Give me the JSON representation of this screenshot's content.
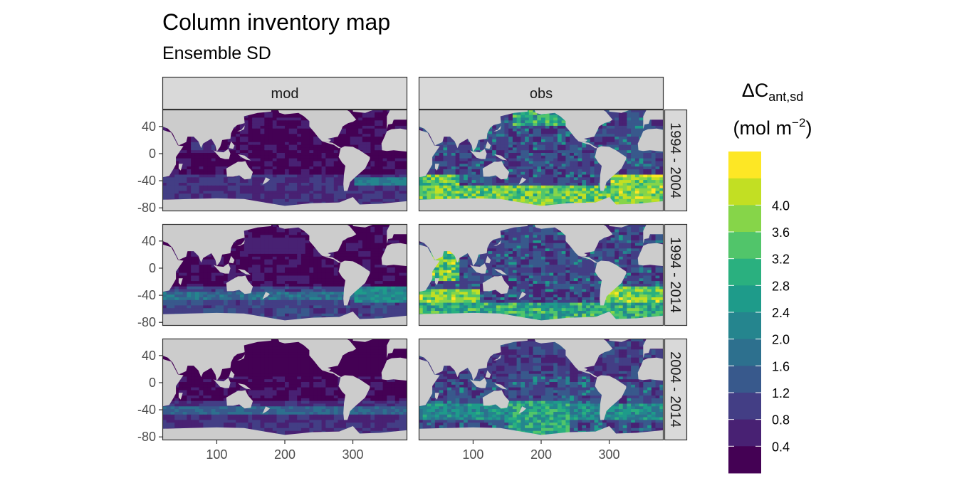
{
  "chart_data": {
    "type": "heatmap",
    "title": "Column inventory map",
    "subtitle": "Ensemble SD",
    "facet_columns": [
      "mod",
      "obs"
    ],
    "facet_rows": [
      "1994 - 2004",
      "1994 - 2014",
      "2004 - 2014"
    ],
    "x_ticks": [
      100,
      200,
      300
    ],
    "y_ticks": [
      40,
      0,
      -40,
      -80
    ],
    "xlim": [
      20,
      380
    ],
    "ylim": [
      -85,
      65
    ],
    "legend": {
      "title_main": "ΔC",
      "title_sub": "ant,sd",
      "unit_pre": "(mol m",
      "unit_sup": "−2",
      "unit_post": ")",
      "position": "right",
      "breaks": [
        0.4,
        0.8,
        1.2,
        1.6,
        2.0,
        2.4,
        2.8,
        3.2,
        3.6,
        4.0
      ],
      "labels": [
        "0.4",
        "0.8",
        "1.2",
        "1.6",
        "2.0",
        "2.4",
        "2.8",
        "3.2",
        "3.6",
        "4.0"
      ],
      "colors": [
        "#440154",
        "#482173",
        "#433e85",
        "#38598c",
        "#2d708e",
        "#25858e",
        "#1e9b8a",
        "#2ab07f",
        "#51c56a",
        "#86d549",
        "#c2df23",
        "#fde725"
      ]
    },
    "land_color": "#cccccc",
    "strip_fill": "#d9d9d9",
    "grid": false
  }
}
